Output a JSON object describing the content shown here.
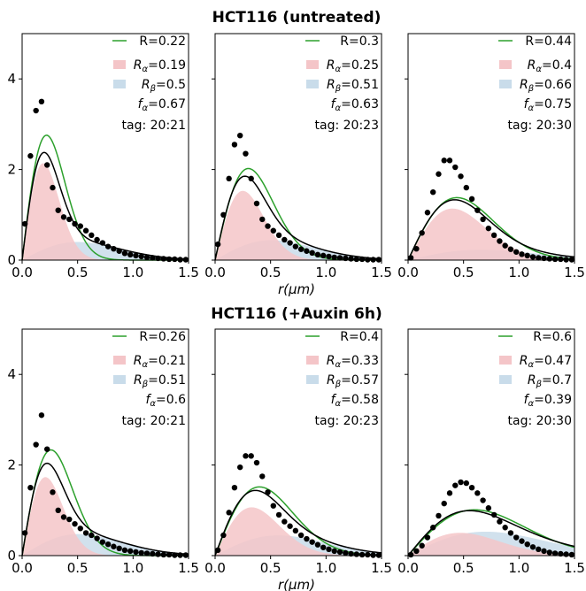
{
  "figure": {
    "rows": [
      {
        "title": "HCT116 (untreated)",
        "xlabel": "r(μm)"
      },
      {
        "title": "HCT116 (+Auxin 6h)",
        "xlabel": "r(μm)"
      }
    ],
    "colors": {
      "total": "#2ca02c",
      "alpha": "#f4c5c8",
      "beta": "#c9dcea",
      "fit": "#000000",
      "points": "#000000"
    }
  },
  "chart_data": [
    {
      "type": "line",
      "row": 0,
      "xlim": [
        0,
        1.5
      ],
      "ylim": [
        0,
        5
      ],
      "xticks": [
        "0.0",
        "0.5",
        "1.0",
        "1.5"
      ],
      "yticks": [
        "0",
        "2",
        "4"
      ],
      "legend": {
        "R": "R=0.22",
        "Ralpha": "=0.19",
        "Rbeta": "=0.5",
        "falpha": "=0.67"
      },
      "annotation": "tag: 20:21",
      "model": {
        "R": 0.22,
        "Ralpha": 0.19,
        "Rbeta": 0.5,
        "falpha": 0.67
      },
      "points": {
        "x": [
          0.025,
          0.075,
          0.125,
          0.175,
          0.225,
          0.275,
          0.325,
          0.375,
          0.425,
          0.475,
          0.525,
          0.575,
          0.625,
          0.675,
          0.725,
          0.775,
          0.825,
          0.875,
          0.925,
          0.975,
          1.025,
          1.075,
          1.125,
          1.175,
          1.225,
          1.275,
          1.325,
          1.375,
          1.425,
          1.475
        ],
        "y": [
          0.8,
          2.3,
          3.3,
          3.5,
          2.1,
          1.6,
          1.1,
          0.95,
          0.9,
          0.8,
          0.75,
          0.65,
          0.55,
          0.45,
          0.38,
          0.3,
          0.25,
          0.2,
          0.15,
          0.12,
          0.1,
          0.08,
          0.06,
          0.05,
          0.04,
          0.03,
          0.02,
          0.02,
          0.01,
          0.01
        ]
      }
    },
    {
      "type": "line",
      "row": 0,
      "xlim": [
        0,
        1.5
      ],
      "ylim": [
        0,
        5
      ],
      "xticks": [
        "0.0",
        "0.5",
        "1.0",
        "1.5"
      ],
      "yticks": [],
      "legend": {
        "R": "R=0.3",
        "Ralpha": "=0.25",
        "Rbeta": "=0.51",
        "falpha": "=0.63"
      },
      "annotation": "tag: 20:23",
      "model": {
        "R": 0.3,
        "Ralpha": 0.25,
        "Rbeta": 0.51,
        "falpha": 0.63
      },
      "points": {
        "x": [
          0.025,
          0.075,
          0.125,
          0.175,
          0.225,
          0.275,
          0.325,
          0.375,
          0.425,
          0.475,
          0.525,
          0.575,
          0.625,
          0.675,
          0.725,
          0.775,
          0.825,
          0.875,
          0.925,
          0.975,
          1.025,
          1.075,
          1.125,
          1.175,
          1.225,
          1.275,
          1.325,
          1.375,
          1.425,
          1.475
        ],
        "y": [
          0.35,
          1.0,
          1.8,
          2.55,
          2.75,
          2.35,
          1.8,
          1.25,
          0.9,
          0.75,
          0.65,
          0.55,
          0.45,
          0.38,
          0.3,
          0.24,
          0.2,
          0.16,
          0.12,
          0.1,
          0.08,
          0.06,
          0.05,
          0.04,
          0.03,
          0.02,
          0.02,
          0.01,
          0.01,
          0.01
        ]
      }
    },
    {
      "type": "line",
      "row": 0,
      "xlim": [
        0,
        1.5
      ],
      "ylim": [
        0,
        5
      ],
      "xticks": [
        "0.0",
        "0.5",
        "1.0",
        "1.5"
      ],
      "yticks": [],
      "legend": {
        "R": "R=0.44",
        "Ralpha": "=0.4",
        "Rbeta": "=0.66",
        "falpha": "=0.75"
      },
      "annotation": "tag: 20:30",
      "model": {
        "R": 0.44,
        "Ralpha": 0.4,
        "Rbeta": 0.66,
        "falpha": 0.75
      },
      "points": {
        "x": [
          0.025,
          0.075,
          0.125,
          0.175,
          0.225,
          0.275,
          0.325,
          0.375,
          0.425,
          0.475,
          0.525,
          0.575,
          0.625,
          0.675,
          0.725,
          0.775,
          0.825,
          0.875,
          0.925,
          0.975,
          1.025,
          1.075,
          1.125,
          1.175,
          1.225,
          1.275,
          1.325,
          1.375,
          1.425,
          1.475
        ],
        "y": [
          0.05,
          0.25,
          0.6,
          1.05,
          1.5,
          1.9,
          2.2,
          2.2,
          2.05,
          1.85,
          1.6,
          1.35,
          1.1,
          0.9,
          0.7,
          0.55,
          0.42,
          0.32,
          0.24,
          0.18,
          0.13,
          0.1,
          0.07,
          0.05,
          0.04,
          0.03,
          0.02,
          0.02,
          0.01,
          0.01
        ]
      }
    },
    {
      "type": "line",
      "row": 1,
      "xlim": [
        0,
        1.5
      ],
      "ylim": [
        0,
        5
      ],
      "xticks": [
        "0.0",
        "0.5",
        "1.0",
        "1.5"
      ],
      "yticks": [
        "0",
        "2",
        "4"
      ],
      "legend": {
        "R": "R=0.26",
        "Ralpha": "=0.21",
        "Rbeta": "=0.51",
        "falpha": "=0.6"
      },
      "annotation": "tag: 20:21",
      "model": {
        "R": 0.26,
        "Ralpha": 0.21,
        "Rbeta": 0.51,
        "falpha": 0.6
      },
      "points": {
        "x": [
          0.025,
          0.075,
          0.125,
          0.175,
          0.225,
          0.275,
          0.325,
          0.375,
          0.425,
          0.475,
          0.525,
          0.575,
          0.625,
          0.675,
          0.725,
          0.775,
          0.825,
          0.875,
          0.925,
          0.975,
          1.025,
          1.075,
          1.125,
          1.175,
          1.225,
          1.275,
          1.325,
          1.375,
          1.425,
          1.475
        ],
        "y": [
          0.5,
          1.5,
          2.45,
          3.1,
          2.35,
          1.4,
          1.0,
          0.85,
          0.8,
          0.7,
          0.6,
          0.5,
          0.45,
          0.38,
          0.3,
          0.25,
          0.2,
          0.16,
          0.12,
          0.1,
          0.08,
          0.06,
          0.05,
          0.04,
          0.03,
          0.02,
          0.02,
          0.01,
          0.01,
          0.01
        ]
      }
    },
    {
      "type": "line",
      "row": 1,
      "xlim": [
        0,
        1.5
      ],
      "ylim": [
        0,
        5
      ],
      "xticks": [
        "0.0",
        "0.5",
        "1.0",
        "1.5"
      ],
      "yticks": [],
      "legend": {
        "R": "R=0.4",
        "Ralpha": "=0.33",
        "Rbeta": "=0.57",
        "falpha": "=0.58"
      },
      "annotation": "tag: 20:23",
      "model": {
        "R": 0.4,
        "Ralpha": 0.33,
        "Rbeta": 0.57,
        "falpha": 0.58
      },
      "points": {
        "x": [
          0.025,
          0.075,
          0.125,
          0.175,
          0.225,
          0.275,
          0.325,
          0.375,
          0.425,
          0.475,
          0.525,
          0.575,
          0.625,
          0.675,
          0.725,
          0.775,
          0.825,
          0.875,
          0.925,
          0.975,
          1.025,
          1.075,
          1.125,
          1.175,
          1.225,
          1.275,
          1.325,
          1.375,
          1.425,
          1.475
        ],
        "y": [
          0.12,
          0.45,
          0.95,
          1.5,
          1.95,
          2.2,
          2.2,
          2.05,
          1.75,
          1.4,
          1.1,
          0.9,
          0.75,
          0.65,
          0.55,
          0.45,
          0.37,
          0.3,
          0.24,
          0.18,
          0.14,
          0.1,
          0.08,
          0.06,
          0.04,
          0.03,
          0.02,
          0.02,
          0.01,
          0.01
        ]
      }
    },
    {
      "type": "line",
      "row": 1,
      "xlim": [
        0,
        1.5
      ],
      "ylim": [
        0,
        5
      ],
      "xticks": [
        "0.0",
        "0.5",
        "1.0",
        "1.5"
      ],
      "yticks": [],
      "legend": {
        "R": "R=0.6",
        "Ralpha": "=0.47",
        "Rbeta": "=0.7",
        "falpha": "=0.39"
      },
      "annotation": "tag: 20:30",
      "model": {
        "R": 0.6,
        "Ralpha": 0.47,
        "Rbeta": 0.7,
        "falpha": 0.39
      },
      "points": {
        "x": [
          0.025,
          0.075,
          0.125,
          0.175,
          0.225,
          0.275,
          0.325,
          0.375,
          0.425,
          0.475,
          0.525,
          0.575,
          0.625,
          0.675,
          0.725,
          0.775,
          0.825,
          0.875,
          0.925,
          0.975,
          1.025,
          1.075,
          1.125,
          1.175,
          1.225,
          1.275,
          1.325,
          1.375,
          1.425,
          1.475
        ],
        "y": [
          0.02,
          0.1,
          0.22,
          0.4,
          0.62,
          0.88,
          1.15,
          1.38,
          1.55,
          1.62,
          1.6,
          1.5,
          1.38,
          1.22,
          1.05,
          0.9,
          0.75,
          0.62,
          0.5,
          0.4,
          0.32,
          0.25,
          0.19,
          0.14,
          0.1,
          0.07,
          0.05,
          0.04,
          0.03,
          0.02
        ]
      }
    }
  ]
}
